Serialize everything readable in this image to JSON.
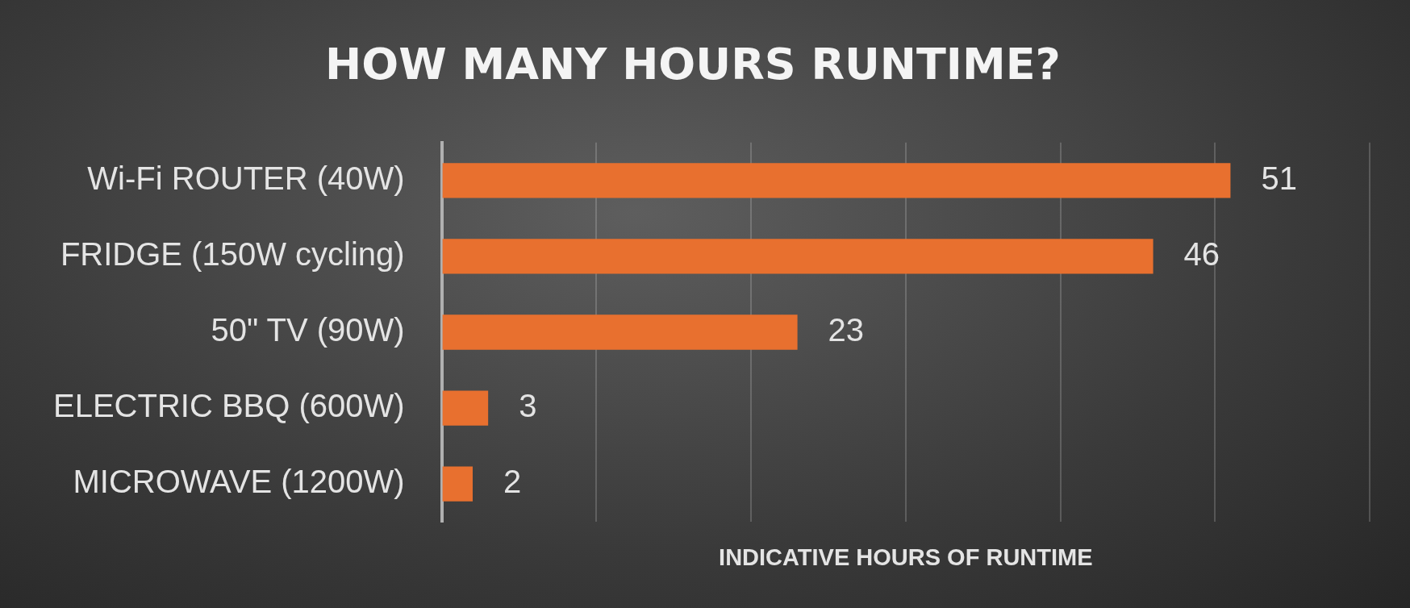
{
  "chart_data": {
    "type": "bar",
    "orientation": "horizontal",
    "title": "HOW MANY HOURS RUNTIME?",
    "xlabel": "INDICATIVE HOURS OF RUNTIME",
    "categories": [
      "Wi-Fi ROUTER (40W)",
      "FRIDGE (150W cycling)",
      "50\" TV (90W)",
      "ELECTRIC BBQ (600W)",
      "MICROWAVE (1200W)"
    ],
    "values": [
      51,
      46,
      23,
      3,
      2
    ],
    "color": "#e8702f",
    "data_labels": true,
    "xlim": [
      0,
      60
    ],
    "xticks": [
      0,
      10,
      20,
      30,
      40,
      50,
      60
    ],
    "tick_labels": "y",
    "grid": "x",
    "legend": false
  }
}
